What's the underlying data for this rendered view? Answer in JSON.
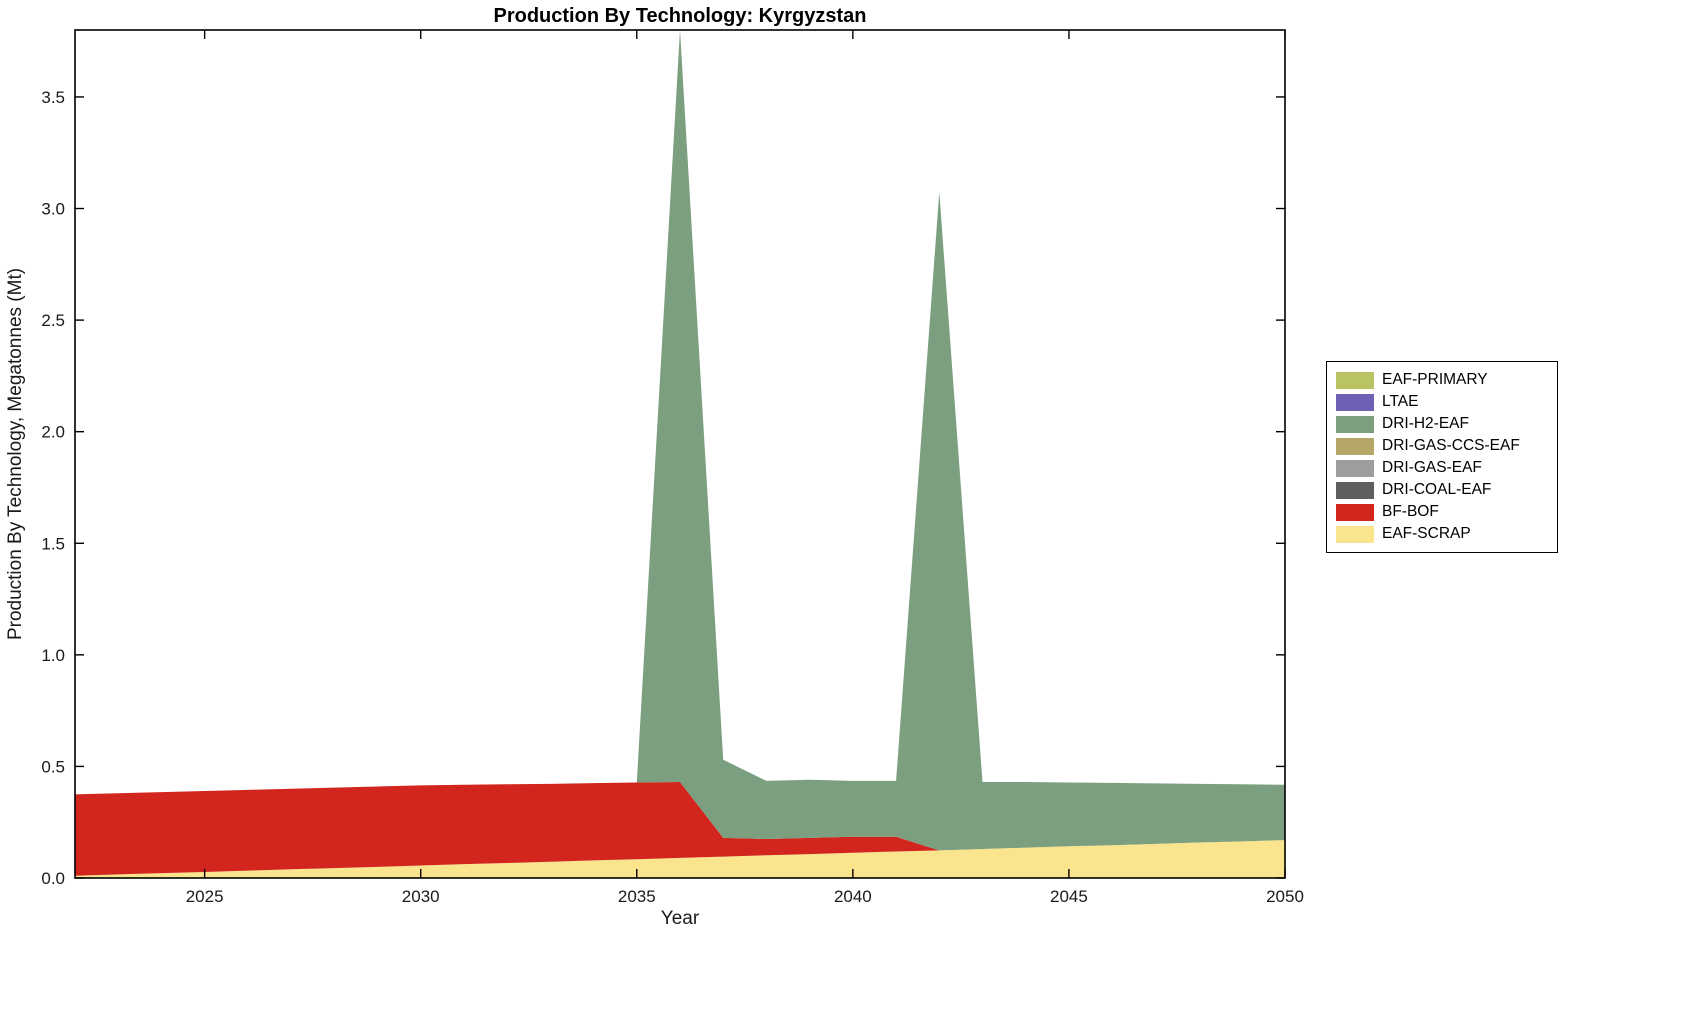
{
  "page": {
    "background": "#ffffff"
  },
  "chart_data": {
    "type": "area",
    "stacked": true,
    "title": "Production By Technology: Kyrgyzstan",
    "xlabel": "Year",
    "ylabel": "Production By Technology, Megatonnes (Mt)",
    "xlim": [
      2022,
      2050
    ],
    "ylim": [
      0,
      3.8
    ],
    "xticks": [
      2025,
      2030,
      2035,
      2040,
      2045,
      2050
    ],
    "yticks": [
      0,
      0.5,
      1.0,
      1.5,
      2.0,
      2.5,
      3.0,
      3.5
    ],
    "ytick_labels": [
      "0.0",
      "0.5",
      "1.0",
      "1.5",
      "2.0",
      "2.5",
      "3.0",
      "3.5"
    ],
    "grid": false,
    "legend_position": "right-outside",
    "years": [
      2022,
      2023,
      2024,
      2025,
      2026,
      2027,
      2028,
      2029,
      2030,
      2031,
      2032,
      2033,
      2034,
      2035,
      2036,
      2037,
      2038,
      2039,
      2040,
      2041,
      2042,
      2043,
      2044,
      2045,
      2046,
      2047,
      2048,
      2049,
      2050
    ],
    "series": [
      {
        "name": "EAF-PRIMARY",
        "color": "#b9c364",
        "values": [
          0,
          0,
          0,
          0,
          0,
          0,
          0,
          0,
          0,
          0,
          0,
          0,
          0,
          0,
          0,
          0,
          0,
          0,
          0,
          0,
          0,
          0,
          0,
          0,
          0,
          0,
          0,
          0,
          0
        ]
      },
      {
        "name": "LTAE",
        "color": "#6e61b5",
        "values": [
          0,
          0,
          0,
          0,
          0,
          0,
          0,
          0,
          0,
          0,
          0,
          0,
          0,
          0,
          0,
          0,
          0,
          0,
          0,
          0,
          0,
          0,
          0,
          0,
          0,
          0,
          0,
          0,
          0
        ]
      },
      {
        "name": "DRI-H2-EAF",
        "color": "#7ca07f",
        "values": [
          0,
          0,
          0,
          0,
          0,
          0,
          0,
          0,
          0,
          0,
          0,
          0,
          0,
          0,
          3.37,
          0.35,
          0.26,
          0.26,
          0.25,
          0.25,
          2.95,
          0.3,
          0.294,
          0.286,
          0.279,
          0.271,
          0.263,
          0.256,
          0.248
        ]
      },
      {
        "name": "DRI-GAS-CCS-EAF",
        "color": "#b4a767",
        "values": [
          0,
          0,
          0,
          0,
          0,
          0,
          0,
          0,
          0,
          0,
          0,
          0,
          0,
          0,
          0,
          0,
          0,
          0,
          0,
          0,
          0,
          0,
          0,
          0,
          0,
          0,
          0,
          0,
          0
        ]
      },
      {
        "name": "DRI-GAS-EAF",
        "color": "#9d9d9d",
        "values": [
          0,
          0,
          0,
          0,
          0,
          0,
          0,
          0,
          0,
          0,
          0,
          0,
          0,
          0,
          0,
          0,
          0,
          0,
          0,
          0,
          0,
          0,
          0,
          0,
          0,
          0,
          0,
          0,
          0
        ]
      },
      {
        "name": "DRI-COAL-EAF",
        "color": "#5e5e5e",
        "values": [
          0,
          0,
          0,
          0,
          0,
          0,
          0,
          0,
          0,
          0,
          0,
          0,
          0,
          0,
          0,
          0,
          0,
          0,
          0,
          0,
          0,
          0,
          0,
          0,
          0,
          0,
          0,
          0,
          0
        ]
      },
      {
        "name": "BF-BOF",
        "color": "#d1251d",
        "values": [
          0.365,
          0.364,
          0.363,
          0.363,
          0.362,
          0.361,
          0.361,
          0.36,
          0.359,
          0.356,
          0.353,
          0.349,
          0.346,
          0.344,
          0.34,
          0.084,
          0.073,
          0.073,
          0.072,
          0.066,
          0,
          0,
          0,
          0,
          0,
          0,
          0,
          0,
          0
        ]
      },
      {
        "name": "EAF-SCRAP",
        "color": "#fbe48e",
        "values": [
          0.01,
          0.016,
          0.022,
          0.027,
          0.033,
          0.039,
          0.044,
          0.05,
          0.056,
          0.062,
          0.067,
          0.073,
          0.079,
          0.084,
          0.09,
          0.096,
          0.102,
          0.107,
          0.113,
          0.119,
          0.124,
          0.13,
          0.136,
          0.142,
          0.147,
          0.153,
          0.159,
          0.164,
          0.17
        ]
      }
    ],
    "stack_order": [
      "EAF-SCRAP",
      "BF-BOF",
      "DRI-COAL-EAF",
      "DRI-GAS-EAF",
      "DRI-GAS-CCS-EAF",
      "DRI-H2-EAF",
      "LTAE",
      "EAF-PRIMARY"
    ]
  }
}
